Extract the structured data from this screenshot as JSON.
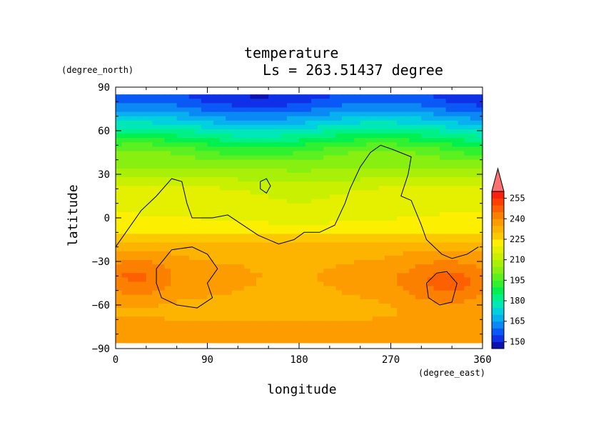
{
  "chart_data": {
    "type": "heatmap",
    "title": "temperature",
    "subtitle": "Ls = 263.51437 degree",
    "xlabel": "longitude",
    "ylabel": "latitude",
    "xunit": "(degree_east)",
    "yunit": "(degree_north)",
    "xlim": [
      0,
      360
    ],
    "ylim": [
      -90,
      90
    ],
    "xticks": [
      0,
      90,
      180,
      270,
      360
    ],
    "yticks": [
      90,
      60,
      30,
      0,
      -30,
      -60,
      -90
    ],
    "colorbar": {
      "levels": [
        145,
        150,
        155,
        160,
        165,
        170,
        175,
        180,
        185,
        190,
        195,
        200,
        205,
        210,
        215,
        220,
        225,
        230,
        235,
        240,
        245,
        250,
        255,
        260
      ],
      "tick_labels": [
        150,
        165,
        180,
        195,
        210,
        225,
        240,
        255
      ],
      "colors": [
        "#0c10b0",
        "#1030e8",
        "#0a58f6",
        "#0a88f4",
        "#08b0f0",
        "#00d0e0",
        "#00e8b8",
        "#00f088",
        "#00f050",
        "#30f030",
        "#5cf020",
        "#88f010",
        "#a8f008",
        "#c8f000",
        "#e4f000",
        "#fcf000",
        "#fcc800",
        "#fcb400",
        "#fc9c00",
        "#fc8000",
        "#fc6000",
        "#fc4000",
        "#fc2010",
        "#fc7070"
      ]
    },
    "field_profile": {
      "latitudes": [
        85,
        80,
        75,
        70,
        65,
        60,
        55,
        50,
        45,
        40,
        35,
        30,
        25,
        20,
        15,
        10,
        5,
        0,
        -5,
        -10,
        -15,
        -20,
        -25,
        -30,
        -35,
        -40,
        -45,
        -50,
        -55,
        -60,
        -65,
        -70,
        -75,
        -80,
        -85
      ],
      "values": [
        148,
        151,
        155,
        161,
        167,
        174,
        180,
        187,
        192,
        196,
        199,
        203,
        207,
        211,
        213,
        214,
        215,
        215,
        216,
        219,
        222,
        227,
        229,
        230,
        231,
        232,
        232,
        231,
        230,
        229,
        229,
        230,
        231,
        231,
        230
      ]
    }
  }
}
